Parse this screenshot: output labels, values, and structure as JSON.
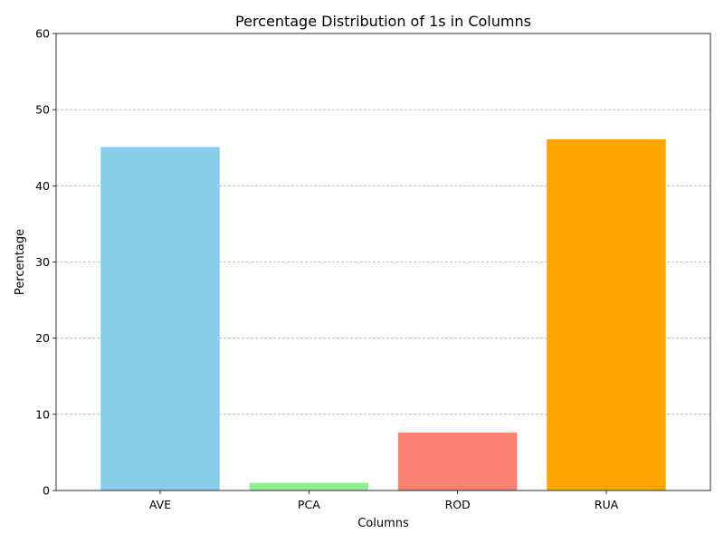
{
  "chart_data": {
    "type": "bar",
    "title": "Percentage Distribution of 1s in Columns",
    "xlabel": "Columns",
    "ylabel": "Percentage",
    "categories": [
      "AVE",
      "PCA",
      "ROD",
      "RUA"
    ],
    "values": [
      45.1,
      1.0,
      7.6,
      46.1
    ],
    "colors": [
      "#87CEEB",
      "#90EE90",
      "#FA8072",
      "#FFA500"
    ],
    "ylim": [
      0,
      60
    ],
    "yticks": [
      0,
      10,
      20,
      30,
      40,
      50,
      60
    ],
    "grid": "y-dashed",
    "legend": "none"
  }
}
